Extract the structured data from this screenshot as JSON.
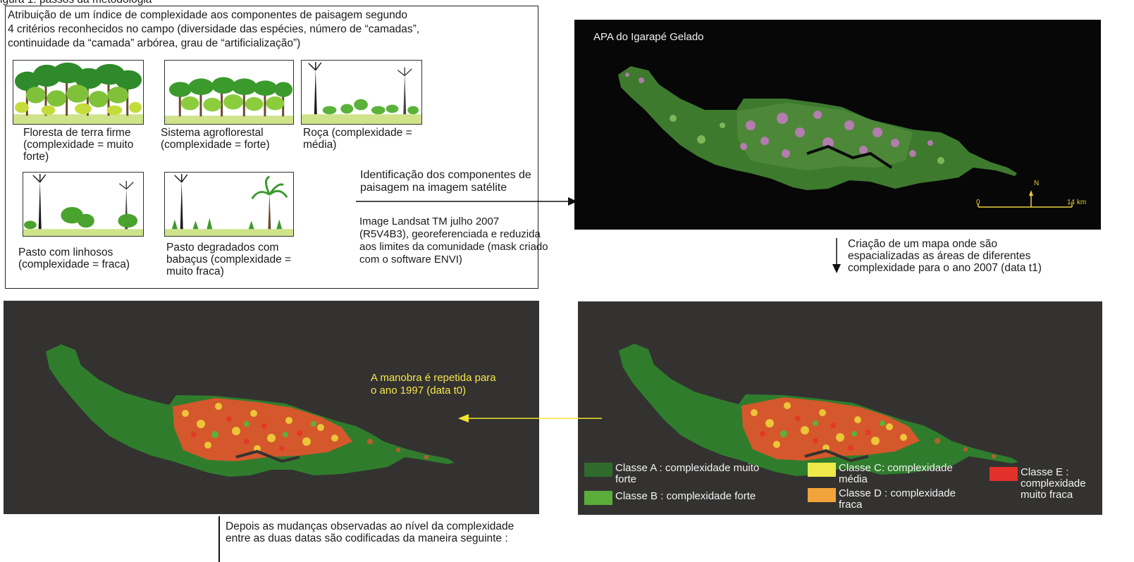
{
  "figure_caption_cut": "igura 1: passos da metodologia",
  "criteria": {
    "title_lines": [
      "Atribuição de um índice de complexidade aos componentes de paisagem segundo",
      "4 critérios reconhecidos no campo (diversidade das espécies, número de “camadas”,",
      "continuidade da “camada” arbórea, grau de “artificialização”)"
    ],
    "components": [
      {
        "lines": [
          "Floresta de terra firme",
          "(complexidade = muito",
          "forte)"
        ]
      },
      {
        "lines": [
          "Sistema agroflorestal",
          "(complexidade = forte)"
        ]
      },
      {
        "lines": [
          "Roça (complexidade =",
          "média)"
        ]
      },
      {
        "lines": [
          "Pasto com linhosos",
          "(complexidade = fraca)"
        ]
      },
      {
        "lines": [
          "Pasto degradados com",
          "babaçus (complexidade =",
          "muito fraca)"
        ]
      }
    ]
  },
  "step_identification": {
    "lines": [
      "Identificação dos componentes de",
      "paisagem na imagem satélite"
    ]
  },
  "image_info": {
    "lines": [
      "Image Landsat TM julho 2007",
      "(R5V4B3), georeferenciada e reduzida",
      "aos limites da comunidade (mask criado",
      "com o software ENVI)"
    ]
  },
  "satellite": {
    "title": "APA do Igarapé Gelado",
    "north": "N",
    "scale_start": "0",
    "scale_end": "14 km"
  },
  "step_map": {
    "lines": [
      "Criação de um mapa onde são",
      "espacializadas as áreas de diferentes",
      "complexidade para o ano 2007 (data t1)"
    ]
  },
  "repeat_note": {
    "lines": [
      "A manobra é repetida para",
      "o ano 1997 (data t0)"
    ]
  },
  "legend": [
    {
      "label_lines": [
        "Classe A : complexidade muito",
        "forte"
      ],
      "color": "#2f6b2c"
    },
    {
      "label_lines": [
        "Classe B : complexidade forte"
      ],
      "color": "#5aad3a"
    },
    {
      "label_lines": [
        "Classe C: complexidade",
        "média"
      ],
      "color": "#eee84a"
    },
    {
      "label_lines": [
        "Classe D : complexidade",
        "fraca"
      ],
      "color": "#f2a33a"
    },
    {
      "label_lines": [
        "Classe E :",
        "complexidade",
        "muito fraca"
      ],
      "color": "#e2302a"
    }
  ],
  "step_changes": {
    "lines": [
      "Depois as mudanças observadas ao nível da complexidade",
      "entre as duas datas são codificadas da maneira seguinte :"
    ]
  },
  "colors": {
    "arrow_black": "#111111",
    "arrow_yellow": "#f3e331",
    "map_bg": "#333230",
    "class_a": "#2f6b2c",
    "class_b": "#5aad3a",
    "class_c": "#eee84a",
    "class_d": "#f2a33a",
    "class_e": "#e2302a"
  }
}
